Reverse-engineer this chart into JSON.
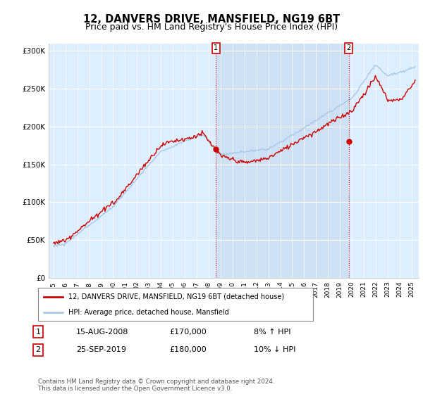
{
  "title": "12, DANVERS DRIVE, MANSFIELD, NG19 6BT",
  "subtitle": "Price paid vs. HM Land Registry's House Price Index (HPI)",
  "ylabel_ticks": [
    "£0",
    "£50K",
    "£100K",
    "£150K",
    "£200K",
    "£250K",
    "£300K"
  ],
  "ytick_values": [
    0,
    50000,
    100000,
    150000,
    200000,
    250000,
    300000
  ],
  "ylim": [
    0,
    310000
  ],
  "xlim_start": 1994.6,
  "xlim_end": 2025.6,
  "hpi_color": "#a8c8e8",
  "price_color": "#cc0000",
  "plot_bg": "#ddeeff",
  "plot_bg_highlight": "#c8dcf0",
  "marker1_x": 2008.62,
  "marker1_y": 170000,
  "marker2_x": 2019.73,
  "marker2_y": 180000,
  "legend_line1": "12, DANVERS DRIVE, MANSFIELD, NG19 6BT (detached house)",
  "legend_line2": "HPI: Average price, detached house, Mansfield",
  "table_row1": [
    "1",
    "15-AUG-2008",
    "£170,000",
    "8% ↑ HPI"
  ],
  "table_row2": [
    "2",
    "25-SEP-2019",
    "£180,000",
    "10% ↓ HPI"
  ],
  "footnote": "Contains HM Land Registry data © Crown copyright and database right 2024.\nThis data is licensed under the Open Government Licence v3.0.",
  "title_fontsize": 10.5,
  "subtitle_fontsize": 9.0,
  "tick_fontsize": 7.5
}
